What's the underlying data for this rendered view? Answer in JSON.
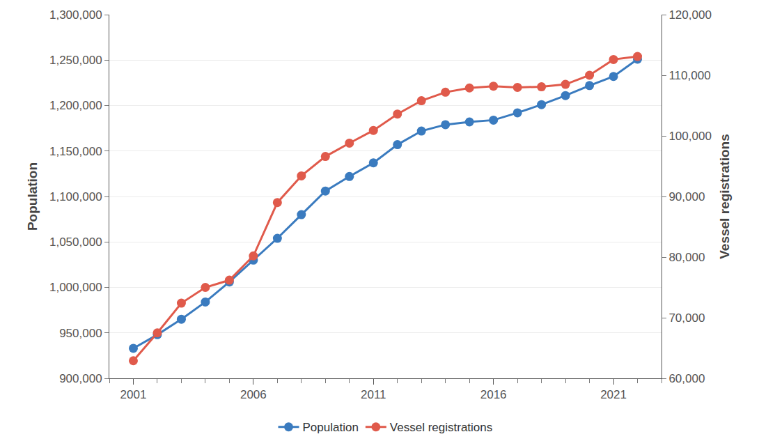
{
  "chart_data": {
    "type": "line",
    "x": [
      2001,
      2002,
      2003,
      2004,
      2005,
      2006,
      2007,
      2008,
      2009,
      2010,
      2011,
      2012,
      2013,
      2014,
      2015,
      2016,
      2017,
      2018,
      2019,
      2020,
      2021,
      2022
    ],
    "series": [
      {
        "name": "Population",
        "color": "#3a7bbf",
        "marker": "circle",
        "values": [
          933000,
          948000,
          965000,
          984000,
          1006000,
          1030000,
          1054000,
          1080000,
          1106000,
          1122000,
          1137000,
          1157000,
          1172000,
          1179000,
          1182000,
          1184000,
          1192000,
          1201000,
          1211000,
          1222000,
          1232000,
          1251000
        ]
      },
      {
        "name": "Vessel registrations",
        "color": "#e05a4b",
        "marker": "circle",
        "axis": "y2",
        "values": [
          62900,
          67500,
          72400,
          75000,
          76200,
          80200,
          89000,
          93400,
          96600,
          98800,
          100900,
          103600,
          105800,
          107200,
          107900,
          108200,
          108000,
          108100,
          108500,
          110000,
          112600,
          113100
        ]
      }
    ],
    "y_label": "Population",
    "y2_label": "Vessel registrations",
    "xlim": [
      2000,
      2023
    ],
    "xticks": [
      2001,
      2006,
      2011,
      2016,
      2021
    ],
    "ylim": [
      900000,
      1300000
    ],
    "yticks": [
      {
        "value": 900000,
        "label": "900,000"
      },
      {
        "value": 950000,
        "label": "950,000"
      },
      {
        "value": 1000000,
        "label": "1,000,000"
      },
      {
        "value": 1050000,
        "label": "1,050,000"
      },
      {
        "value": 1100000,
        "label": "1,100,000"
      },
      {
        "value": 1150000,
        "label": "1,150,000"
      },
      {
        "value": 1200000,
        "label": "1,200,000"
      },
      {
        "value": 1250000,
        "label": "1,250,000"
      },
      {
        "value": 1300000,
        "label": "1,300,000"
      }
    ],
    "y2lim": [
      60000,
      120000
    ],
    "y2ticks": [
      {
        "value": 60000,
        "label": "60,000"
      },
      {
        "value": 70000,
        "label": "70,000"
      },
      {
        "value": 80000,
        "label": "80,000"
      },
      {
        "value": 90000,
        "label": "90,000"
      },
      {
        "value": 100000,
        "label": "100,000"
      },
      {
        "value": 110000,
        "label": "110,000"
      },
      {
        "value": 120000,
        "label": "120,000"
      }
    ],
    "grid": true,
    "legend": "bottom"
  }
}
